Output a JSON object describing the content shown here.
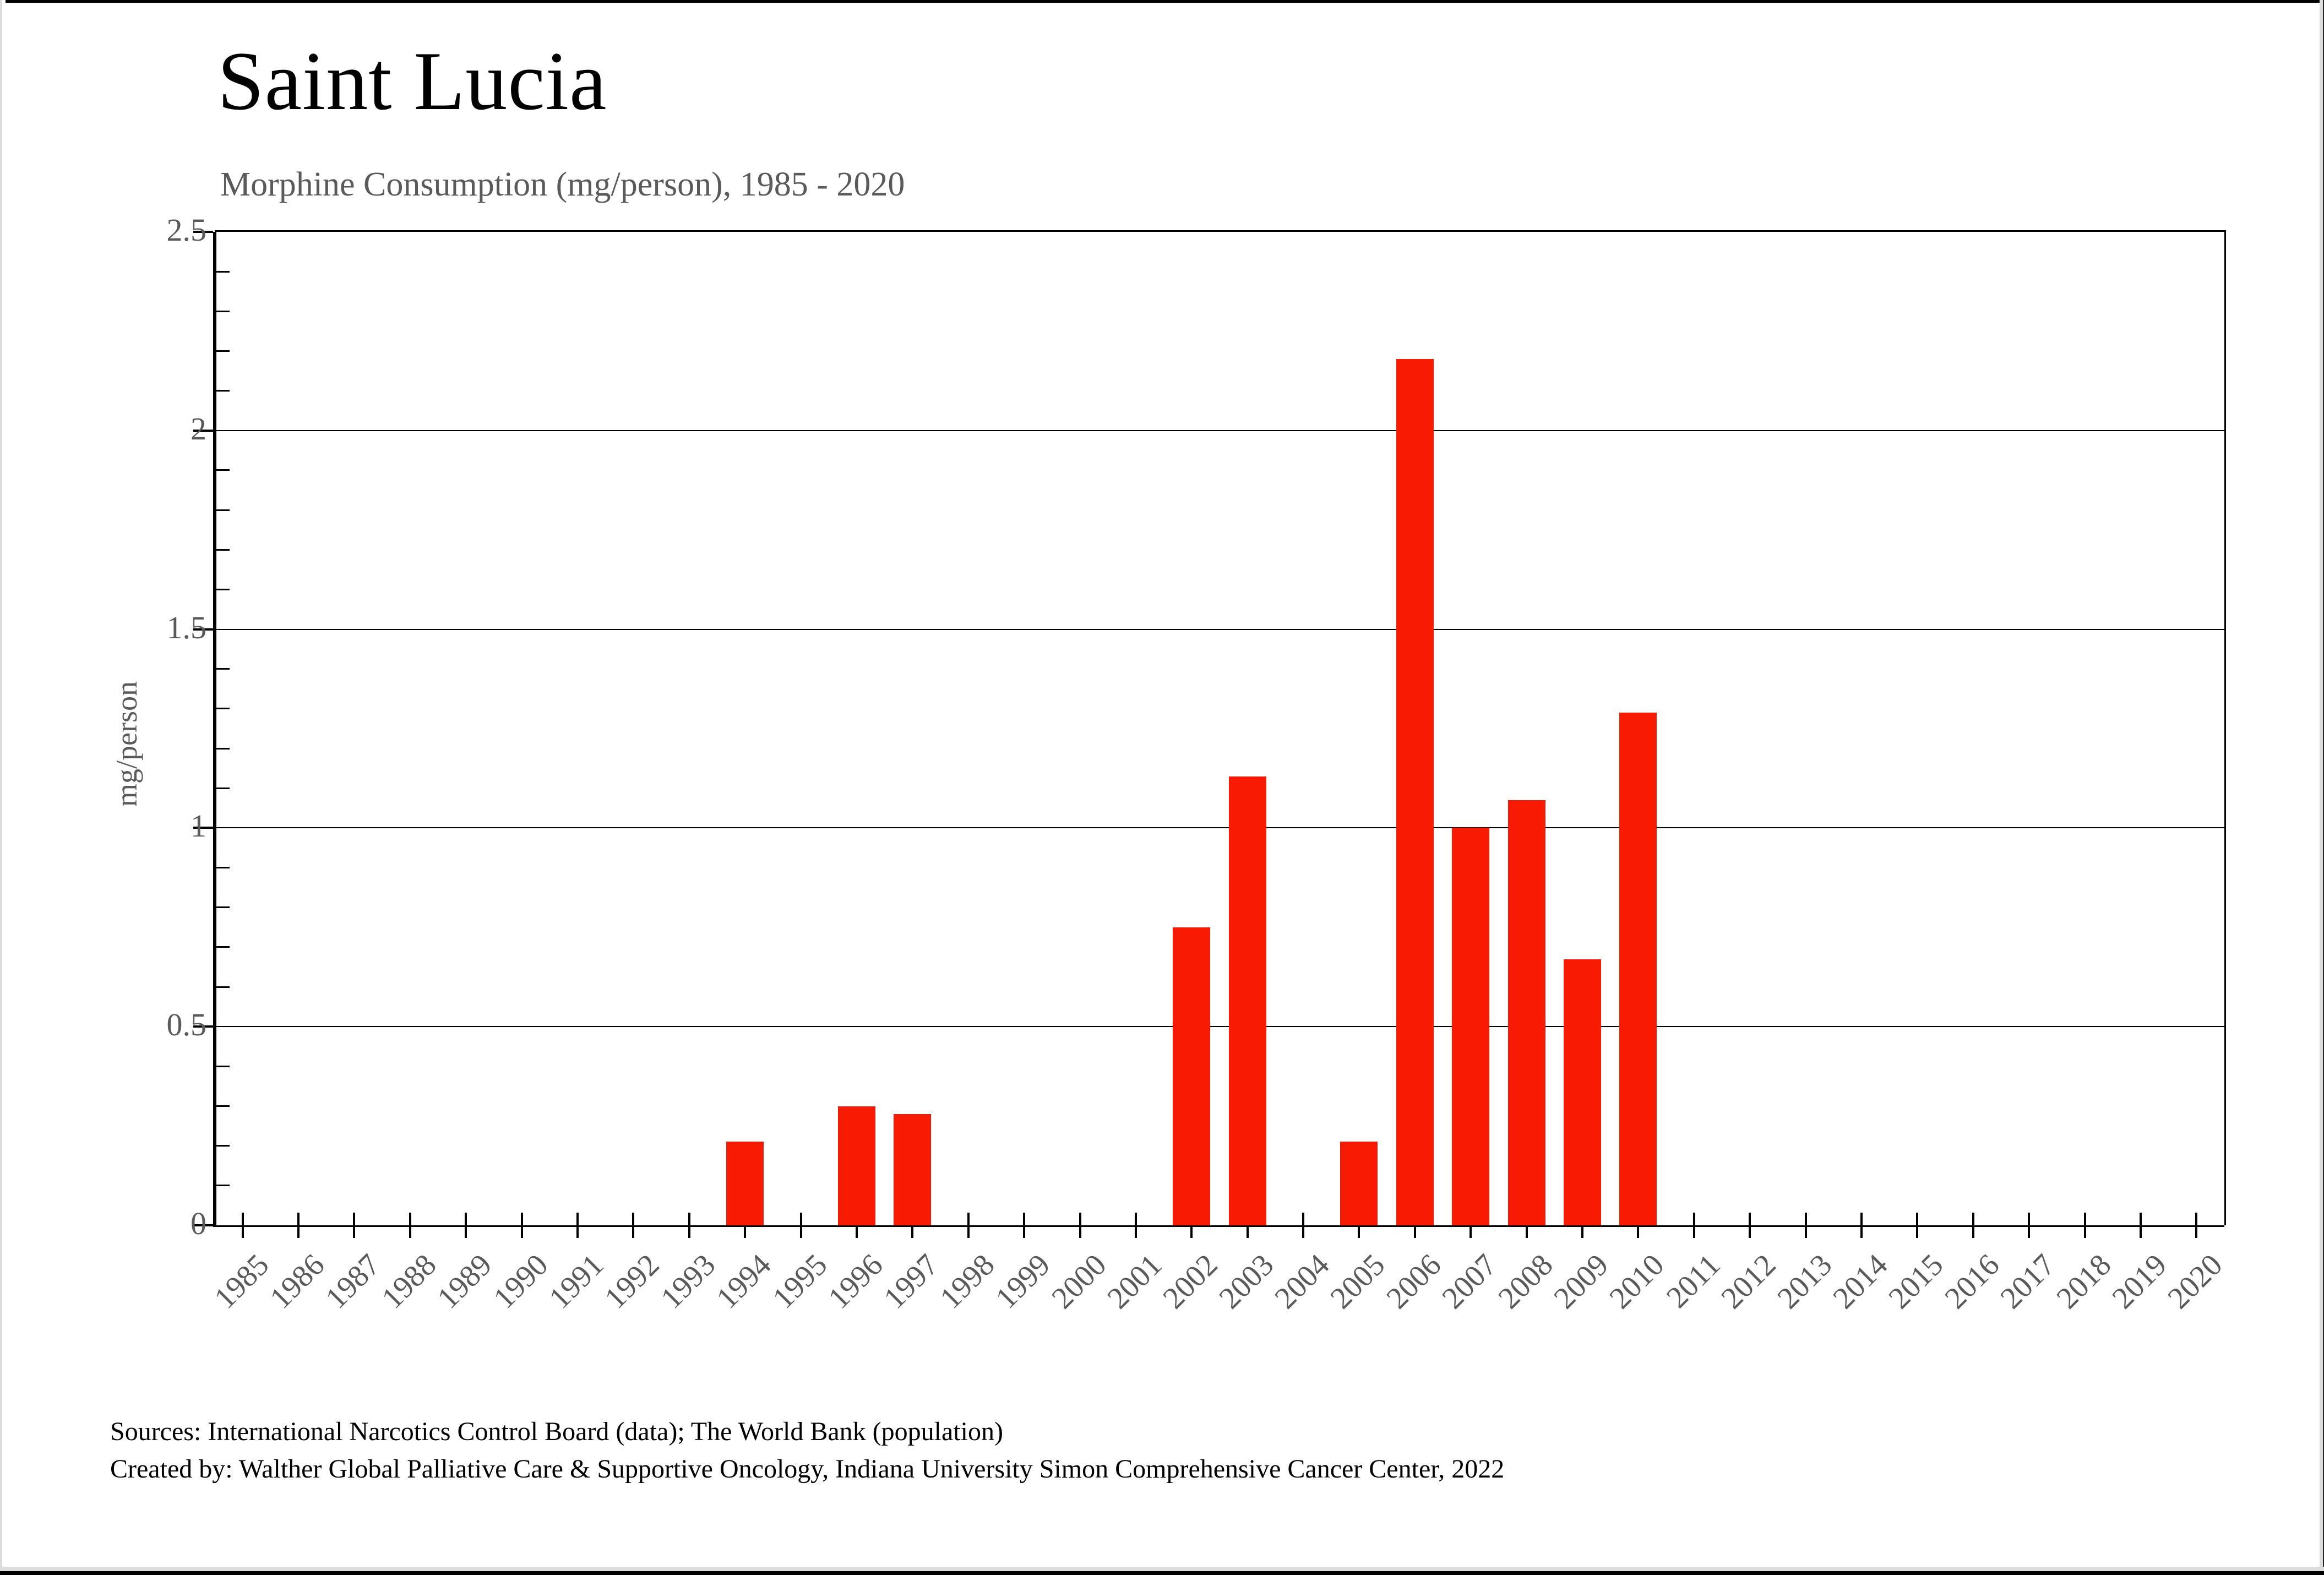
{
  "header": {
    "title": "Saint Lucia",
    "subtitle": "Morphine Consumption (mg/person), 1985 - 2020"
  },
  "chart_data": {
    "type": "bar",
    "title": "Saint Lucia",
    "subtitle": "Morphine Consumption (mg/person), 1985 - 2020",
    "xlabel": "",
    "ylabel": "mg/person",
    "ylim": [
      0,
      2.5
    ],
    "yticks": [
      0,
      0.5,
      1,
      1.5,
      2,
      2.5
    ],
    "ytick_labels": [
      "0",
      "0.5",
      "1",
      "1.5",
      "2",
      "2.5"
    ],
    "minor_ytick_step": 0.1,
    "grid": true,
    "legend": false,
    "bar_color": "#F61B02",
    "axis_text_color": "#5a5a5a",
    "categories": [
      1985,
      1986,
      1987,
      1988,
      1989,
      1990,
      1991,
      1992,
      1993,
      1994,
      1995,
      1996,
      1997,
      1998,
      1999,
      2000,
      2001,
      2002,
      2003,
      2004,
      2005,
      2006,
      2007,
      2008,
      2009,
      2010,
      2011,
      2012,
      2013,
      2014,
      2015,
      2016,
      2017,
      2018,
      2019,
      2020
    ],
    "values": [
      0,
      0,
      0,
      0,
      0,
      0,
      0,
      0,
      0,
      0.21,
      0,
      0.3,
      0.28,
      0,
      0,
      0,
      0,
      0.75,
      1.13,
      0,
      0.21,
      2.18,
      1.0,
      1.07,
      0.67,
      1.29,
      0,
      0,
      0,
      0,
      0,
      0,
      0,
      0,
      0,
      0
    ]
  },
  "footer": {
    "line1": "Sources: International Narcotics Control Board (data); The World Bank (population)",
    "line2": "Created by: Walther  Global Palliative Care & Supportive Oncology, Indiana University Simon Comprehensive Cancer Center, 2022"
  }
}
